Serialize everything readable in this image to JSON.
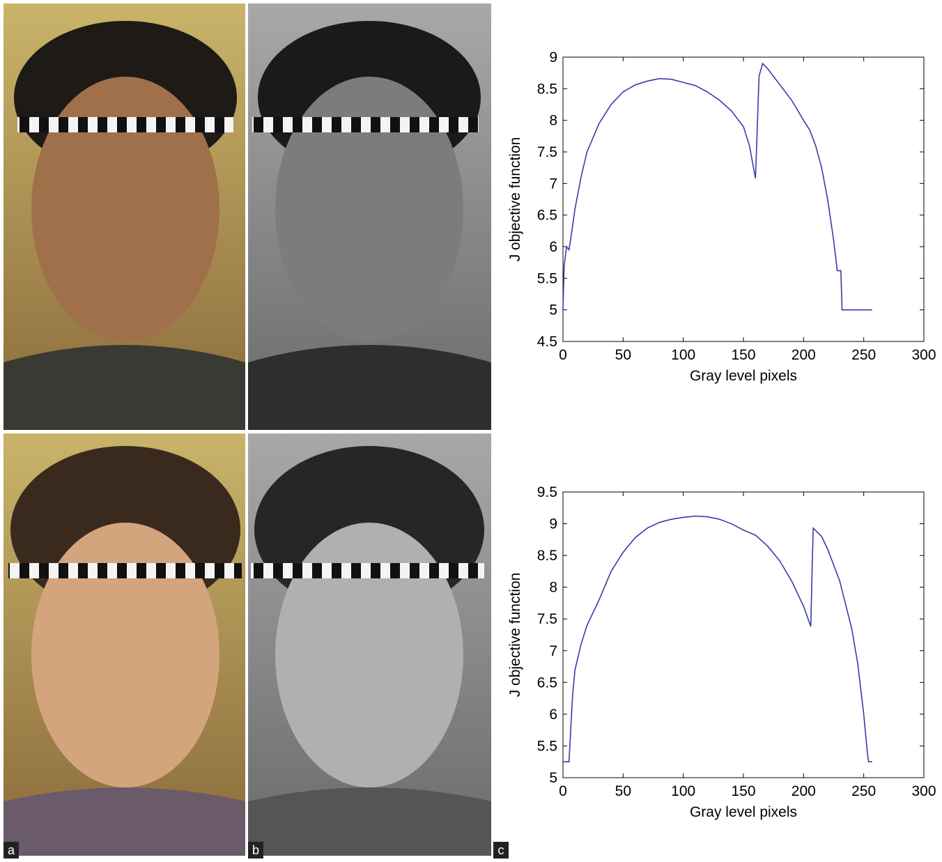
{
  "panels": [
    "a",
    "b",
    "c"
  ],
  "chart_data": [
    {
      "type": "line",
      "xlabel": "Gray level pixels",
      "ylabel": "J objective function",
      "x": [
        0,
        1,
        3,
        5,
        7,
        10,
        15,
        20,
        30,
        40,
        50,
        60,
        70,
        80,
        90,
        100,
        110,
        120,
        130,
        140,
        150,
        155,
        160,
        161,
        163,
        166,
        170,
        180,
        190,
        200,
        205,
        210,
        215,
        220,
        225,
        228,
        231,
        232,
        240,
        250,
        257
      ],
      "series": [
        {
          "color": "#3a3aa8",
          "values": [
            5,
            5.7,
            6,
            5.95,
            6.2,
            6.6,
            7.1,
            7.5,
            7.95,
            8.25,
            8.45,
            8.56,
            8.62,
            8.66,
            8.65,
            8.6,
            8.55,
            8.45,
            8.32,
            8.15,
            7.9,
            7.6,
            7.08,
            7.6,
            8.7,
            8.9,
            8.82,
            8.57,
            8.32,
            8.0,
            7.85,
            7.6,
            7.25,
            6.75,
            6.1,
            5.62,
            5.62,
            5.0,
            5.0,
            5.0,
            5.0
          ]
        }
      ],
      "xlim": [
        0,
        300
      ],
      "xticks": [
        0,
        50,
        100,
        150,
        200,
        250,
        300
      ],
      "ylim": [
        4.5,
        9
      ],
      "yticks": [
        4.5,
        5,
        5.5,
        6,
        6.5,
        7,
        7.5,
        8,
        8.5,
        9
      ]
    },
    {
      "type": "line",
      "xlabel": "Gray level pixels",
      "ylabel": "J objective function",
      "x": [
        0,
        5,
        6,
        8,
        10,
        15,
        20,
        30,
        40,
        50,
        60,
        70,
        80,
        90,
        100,
        110,
        120,
        130,
        140,
        150,
        160,
        170,
        180,
        190,
        200,
        206,
        207,
        208,
        215,
        220,
        230,
        240,
        245,
        250,
        253,
        254,
        257
      ],
      "series": [
        {
          "color": "#3a3aa8",
          "values": [
            5.25,
            5.25,
            5.6,
            6.3,
            6.7,
            7.1,
            7.4,
            7.8,
            8.25,
            8.55,
            8.78,
            8.93,
            9.02,
            9.07,
            9.1,
            9.12,
            9.11,
            9.07,
            9.0,
            8.9,
            8.82,
            8.65,
            8.42,
            8.1,
            7.7,
            7.38,
            8.2,
            8.93,
            8.8,
            8.6,
            8.1,
            7.35,
            6.8,
            6.0,
            5.4,
            5.25,
            5.25
          ]
        }
      ],
      "xlim": [
        0,
        300
      ],
      "xticks": [
        0,
        50,
        100,
        150,
        200,
        250,
        300
      ],
      "ylim": [
        5,
        9.5
      ],
      "yticks": [
        5,
        5.5,
        6,
        6.5,
        7,
        7.5,
        8,
        8.5,
        9,
        9.5
      ]
    }
  ]
}
